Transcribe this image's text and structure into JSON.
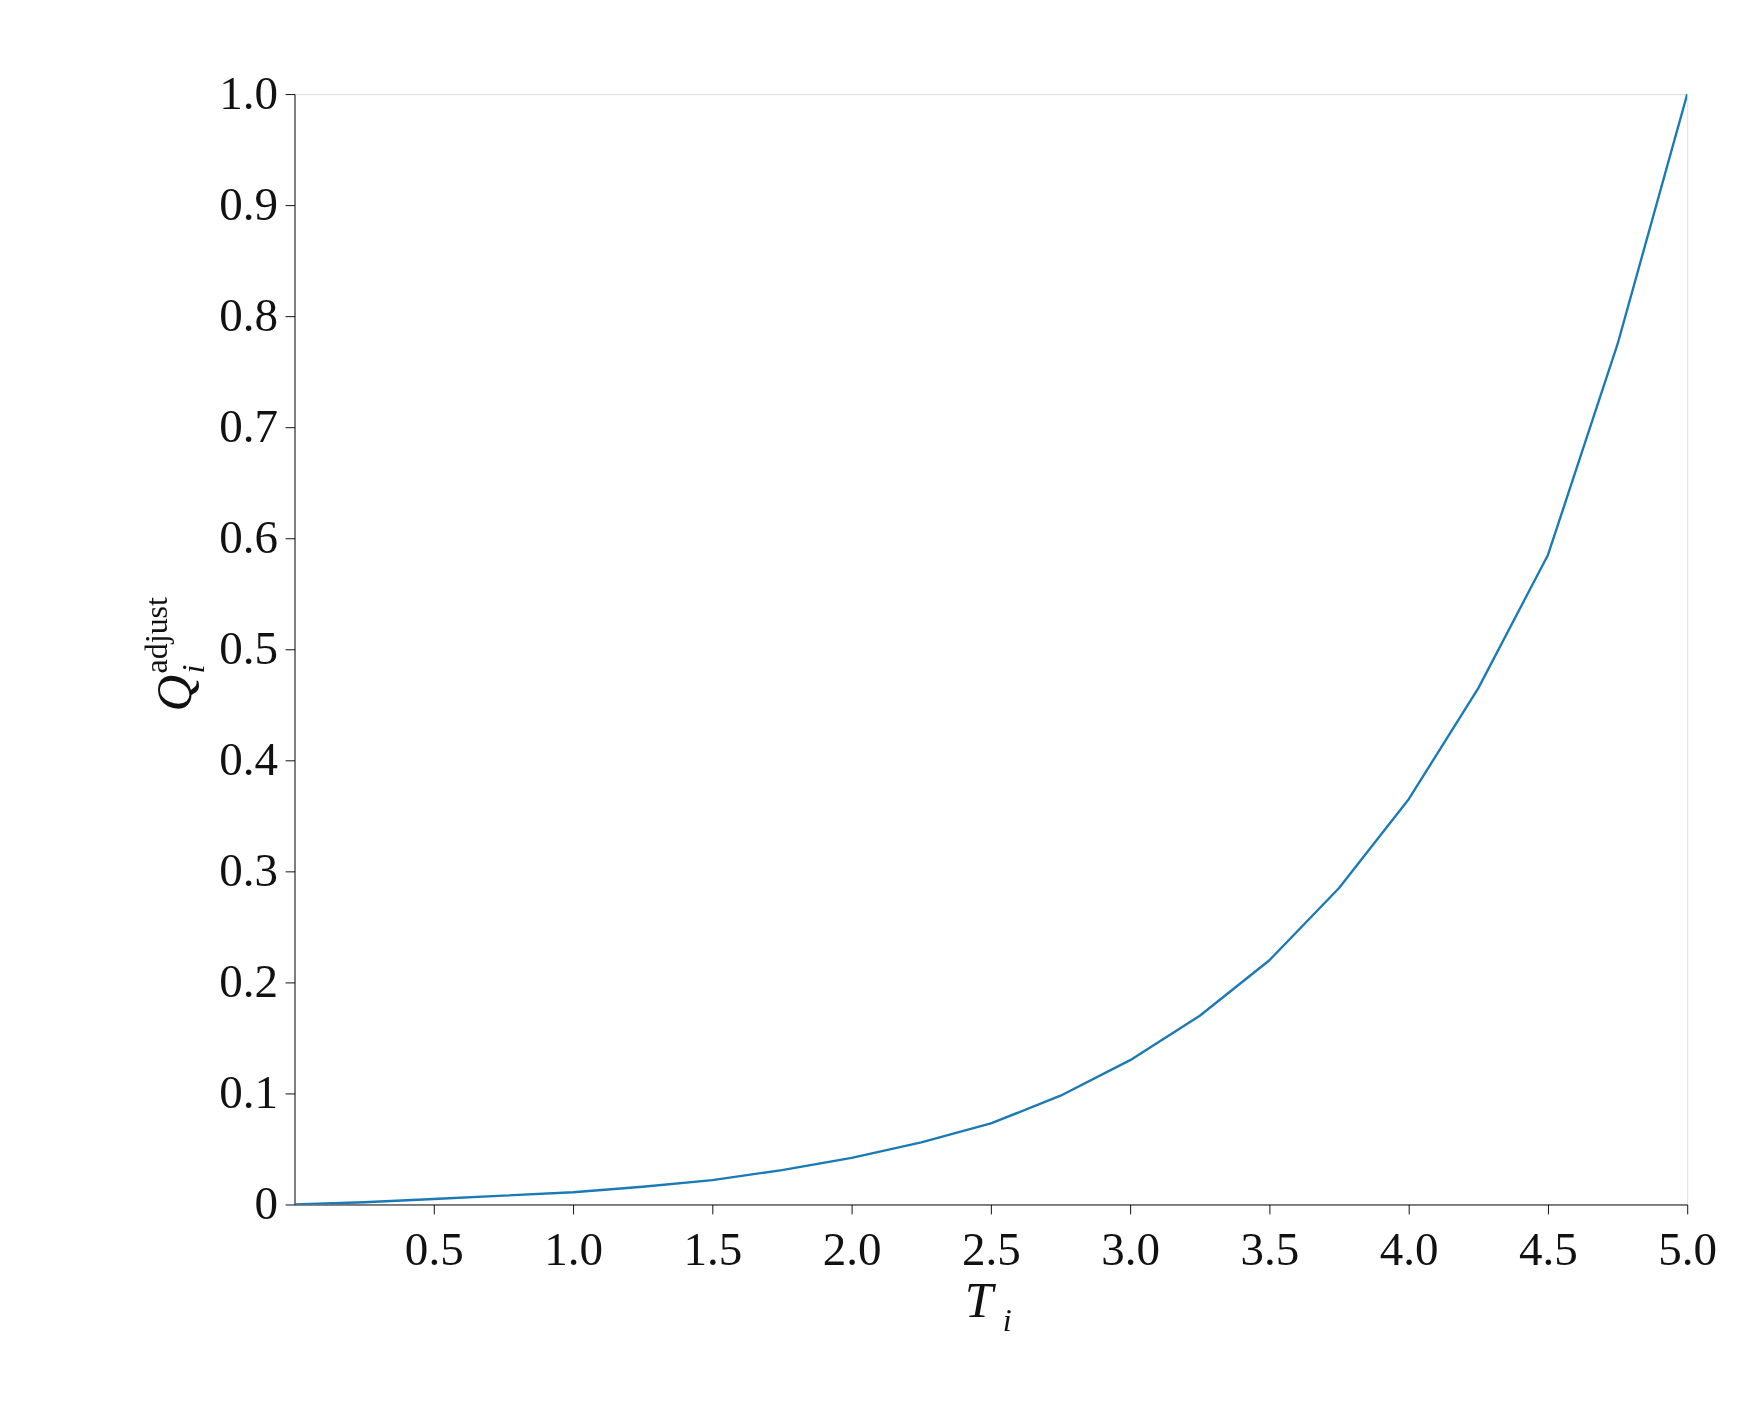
{
  "chart_data": {
    "type": "line",
    "xlabel": "T$_{i}$",
    "ylabel": "Q$_{i}$$^{adjust}$",
    "x": [
      0,
      0.25,
      0.5,
      0.75,
      1.0,
      1.25,
      1.5,
      1.75,
      2.0,
      2.25,
      2.5,
      2.75,
      3.0,
      3.25,
      3.5,
      3.75,
      4.0,
      4.25,
      4.5,
      4.75,
      5.0
    ],
    "series": [
      {
        "color": "#1a7ab5",
        "values": [
          0,
          0.002,
          0.005,
          0.008,
          0.011,
          0.016,
          0.022,
          0.031,
          0.042,
          0.056,
          0.073,
          0.098,
          0.13,
          0.17,
          0.22,
          0.285,
          0.365,
          0.465,
          0.585,
          0.775,
          1.0
        ]
      }
    ],
    "xlim": [
      0,
      5.0
    ],
    "ylim": [
      0,
      1.0
    ],
    "xticks": [
      {
        "value": 0.5,
        "label": "0.5"
      },
      {
        "value": 1.0,
        "label": "1.0"
      },
      {
        "value": 1.5,
        "label": "1.5"
      },
      {
        "value": 2.0,
        "label": "2.0"
      },
      {
        "value": 2.5,
        "label": "2.5"
      },
      {
        "value": 3.0,
        "label": "3.0"
      },
      {
        "value": 3.5,
        "label": "3.5"
      },
      {
        "value": 4.0,
        "label": "4.0"
      },
      {
        "value": 4.5,
        "label": "4.5"
      },
      {
        "value": 5.0,
        "label": "5.0"
      }
    ],
    "yticks": [
      0,
      0.1,
      0.2,
      0.3,
      0.4,
      0.5,
      0.6,
      0.7,
      0.8,
      0.9,
      {
        "value": 1.0,
        "label": "1.0"
      }
    ],
    "grid": false,
    "marker": "none",
    "line_style": "solid"
  }
}
